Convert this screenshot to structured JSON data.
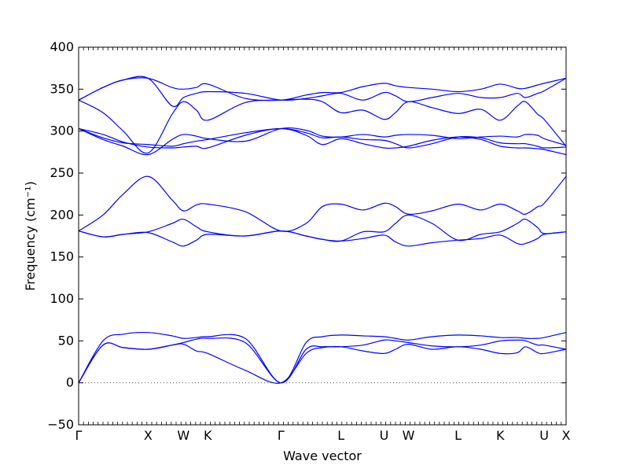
{
  "chart_data": {
    "type": "line",
    "title": "",
    "xlabel": "Wave vector",
    "ylabel": "Frequency (cm⁻¹)",
    "ylim": [
      -50,
      400
    ],
    "yticks": [
      -50,
      0,
      50,
      100,
      150,
      200,
      250,
      300,
      350,
      400
    ],
    "xlim": [
      0,
      12
    ],
    "path_points": [
      {
        "label": "Γ",
        "x": 0
      },
      {
        "label": "X",
        "x": 1.71
      },
      {
        "label": "W",
        "x": 2.58
      },
      {
        "label": "K",
        "x": 3.18
      },
      {
        "label": "Γ",
        "x": 4.98
      },
      {
        "label": "L",
        "x": 6.46
      },
      {
        "label": "U",
        "x": 7.52
      },
      {
        "label": "W",
        "x": 8.12
      },
      {
        "label": "L",
        "x": 9.34
      },
      {
        "label": "K",
        "x": 10.38
      },
      {
        "label": "U",
        "x": 11.46
      },
      {
        "label": "X",
        "x": 12.0
      }
    ],
    "zero_line": 0,
    "line_color": "#0000ff",
    "grid": false,
    "series": [
      {
        "values": [
          [
            0,
            0
          ],
          [
            0.6,
            45
          ],
          [
            1.1,
            42
          ],
          [
            1.71,
            40
          ],
          [
            2.3,
            45
          ],
          [
            2.58,
            46
          ],
          [
            2.9,
            38
          ],
          [
            3.18,
            35
          ],
          [
            4.1,
            15
          ],
          [
            4.98,
            0
          ],
          [
            5.6,
            35
          ],
          [
            6.0,
            42
          ],
          [
            6.46,
            43
          ],
          [
            7.0,
            38
          ],
          [
            7.52,
            35
          ],
          [
            7.8,
            40
          ],
          [
            8.12,
            46
          ],
          [
            8.7,
            40
          ],
          [
            9.34,
            43
          ],
          [
            9.9,
            40
          ],
          [
            10.38,
            35
          ],
          [
            10.8,
            36
          ],
          [
            11.0,
            43
          ],
          [
            11.3,
            36
          ],
          [
            11.46,
            35
          ],
          [
            12.0,
            40
          ]
        ]
      },
      {
        "values": [
          [
            0,
            0
          ],
          [
            0.6,
            45
          ],
          [
            1.1,
            42
          ],
          [
            1.71,
            40
          ],
          [
            2.3,
            45
          ],
          [
            2.58,
            48
          ],
          [
            2.9,
            52
          ],
          [
            3.18,
            53
          ],
          [
            4.1,
            48
          ],
          [
            4.98,
            0
          ],
          [
            5.6,
            40
          ],
          [
            6.0,
            43
          ],
          [
            6.46,
            43
          ],
          [
            7.0,
            45
          ],
          [
            7.52,
            51
          ],
          [
            7.8,
            50
          ],
          [
            8.12,
            48
          ],
          [
            8.7,
            44
          ],
          [
            9.34,
            43
          ],
          [
            9.9,
            45
          ],
          [
            10.38,
            50
          ],
          [
            10.8,
            51
          ],
          [
            11.0,
            50
          ],
          [
            11.3,
            45
          ],
          [
            11.46,
            45
          ],
          [
            12.0,
            40
          ]
        ]
      },
      {
        "values": [
          [
            0,
            0
          ],
          [
            0.6,
            50
          ],
          [
            1.1,
            58
          ],
          [
            1.71,
            60
          ],
          [
            2.3,
            56
          ],
          [
            2.58,
            53
          ],
          [
            2.9,
            54
          ],
          [
            3.18,
            55
          ],
          [
            4.1,
            53
          ],
          [
            4.98,
            0
          ],
          [
            5.6,
            48
          ],
          [
            6.0,
            55
          ],
          [
            6.46,
            57
          ],
          [
            7.0,
            56
          ],
          [
            7.52,
            55
          ],
          [
            7.8,
            53
          ],
          [
            8.12,
            51
          ],
          [
            8.7,
            55
          ],
          [
            9.34,
            57
          ],
          [
            9.9,
            56
          ],
          [
            10.38,
            54
          ],
          [
            10.8,
            54
          ],
          [
            11.0,
            53
          ],
          [
            11.3,
            53
          ],
          [
            11.46,
            54
          ],
          [
            12.0,
            60
          ]
        ]
      },
      {
        "values": [
          [
            0,
            181
          ],
          [
            0.6,
            174
          ],
          [
            1.1,
            177
          ],
          [
            1.71,
            179
          ],
          [
            2.3,
            168
          ],
          [
            2.58,
            163
          ],
          [
            2.9,
            170
          ],
          [
            3.18,
            177
          ],
          [
            4.1,
            175
          ],
          [
            4.98,
            181
          ],
          [
            5.6,
            175
          ],
          [
            6.0,
            171
          ],
          [
            6.46,
            169
          ],
          [
            7.0,
            172
          ],
          [
            7.52,
            176
          ],
          [
            7.8,
            168
          ],
          [
            8.12,
            163
          ],
          [
            8.7,
            167
          ],
          [
            9.34,
            170
          ],
          [
            9.9,
            172
          ],
          [
            10.38,
            176
          ],
          [
            10.8,
            166
          ],
          [
            11.0,
            166
          ],
          [
            11.3,
            172
          ],
          [
            11.46,
            177
          ],
          [
            12.0,
            180
          ]
        ]
      },
      {
        "values": [
          [
            0,
            181
          ],
          [
            0.6,
            174
          ],
          [
            1.1,
            177
          ],
          [
            1.71,
            180
          ],
          [
            2.3,
            190
          ],
          [
            2.58,
            195
          ],
          [
            2.9,
            186
          ],
          [
            3.18,
            180
          ],
          [
            4.1,
            175
          ],
          [
            4.98,
            181
          ],
          [
            5.6,
            175
          ],
          [
            6.0,
            171
          ],
          [
            6.46,
            169
          ],
          [
            7.0,
            180
          ],
          [
            7.52,
            180
          ],
          [
            7.8,
            190
          ],
          [
            8.12,
            200
          ],
          [
            8.7,
            190
          ],
          [
            9.34,
            170
          ],
          [
            9.9,
            177
          ],
          [
            10.38,
            180
          ],
          [
            10.8,
            190
          ],
          [
            11.0,
            195
          ],
          [
            11.3,
            185
          ],
          [
            11.46,
            178
          ],
          [
            12.0,
            180
          ]
        ]
      },
      {
        "values": [
          [
            0,
            181
          ],
          [
            0.6,
            200
          ],
          [
            1.1,
            225
          ],
          [
            1.71,
            246
          ],
          [
            2.3,
            218
          ],
          [
            2.58,
            205
          ],
          [
            2.9,
            212
          ],
          [
            3.18,
            213
          ],
          [
            4.1,
            204
          ],
          [
            4.98,
            181
          ],
          [
            5.6,
            190
          ],
          [
            6.0,
            210
          ],
          [
            6.46,
            213
          ],
          [
            7.0,
            206
          ],
          [
            7.52,
            214
          ],
          [
            7.8,
            210
          ],
          [
            8.12,
            201
          ],
          [
            8.7,
            205
          ],
          [
            9.34,
            213
          ],
          [
            9.9,
            206
          ],
          [
            10.38,
            213
          ],
          [
            10.8,
            205
          ],
          [
            11.0,
            201
          ],
          [
            11.3,
            210
          ],
          [
            11.46,
            214
          ],
          [
            12.0,
            246
          ]
        ]
      },
      {
        "values": [
          [
            0,
            303
          ],
          [
            0.6,
            296
          ],
          [
            1.1,
            287
          ],
          [
            1.71,
            281
          ],
          [
            2.3,
            280
          ],
          [
            2.58,
            281
          ],
          [
            2.9,
            282
          ],
          [
            3.18,
            280
          ],
          [
            4.1,
            295
          ],
          [
            4.98,
            303
          ],
          [
            5.6,
            295
          ],
          [
            6.0,
            284
          ],
          [
            6.46,
            291
          ],
          [
            7.0,
            285
          ],
          [
            7.52,
            280
          ],
          [
            7.8,
            280
          ],
          [
            8.12,
            282
          ],
          [
            8.7,
            289
          ],
          [
            9.34,
            293
          ],
          [
            9.9,
            290
          ],
          [
            10.38,
            282
          ],
          [
            10.8,
            280
          ],
          [
            11.0,
            280
          ],
          [
            11.3,
            279
          ],
          [
            11.46,
            278
          ],
          [
            12.0,
            272
          ]
        ]
      },
      {
        "values": [
          [
            0,
            303
          ],
          [
            0.6,
            292
          ],
          [
            1.1,
            286
          ],
          [
            1.71,
            284
          ],
          [
            2.3,
            282
          ],
          [
            2.58,
            285
          ],
          [
            2.9,
            288
          ],
          [
            3.18,
            290
          ],
          [
            4.1,
            298
          ],
          [
            4.98,
            303
          ],
          [
            5.6,
            298
          ],
          [
            6.0,
            292
          ],
          [
            6.46,
            293
          ],
          [
            7.0,
            290
          ],
          [
            7.52,
            289
          ],
          [
            7.8,
            285
          ],
          [
            8.12,
            280
          ],
          [
            8.7,
            285
          ],
          [
            9.34,
            293
          ],
          [
            9.9,
            292
          ],
          [
            10.38,
            286
          ],
          [
            10.8,
            285
          ],
          [
            11.0,
            285
          ],
          [
            11.3,
            282
          ],
          [
            11.46,
            280
          ],
          [
            12.0,
            281
          ]
        ]
      },
      {
        "values": [
          [
            0,
            303
          ],
          [
            0.6,
            290
          ],
          [
            1.1,
            282
          ],
          [
            1.71,
            272
          ],
          [
            2.3,
            290
          ],
          [
            2.58,
            296
          ],
          [
            2.9,
            294
          ],
          [
            3.18,
            291
          ],
          [
            4.1,
            288
          ],
          [
            4.98,
            303
          ],
          [
            5.6,
            301
          ],
          [
            6.0,
            294
          ],
          [
            6.46,
            293
          ],
          [
            7.0,
            296
          ],
          [
            7.52,
            293
          ],
          [
            7.8,
            295
          ],
          [
            8.12,
            296
          ],
          [
            8.7,
            295
          ],
          [
            9.34,
            291
          ],
          [
            9.9,
            293
          ],
          [
            10.38,
            294
          ],
          [
            10.8,
            293
          ],
          [
            11.0,
            296
          ],
          [
            11.3,
            295
          ],
          [
            11.46,
            291
          ],
          [
            12.0,
            283
          ]
        ]
      },
      {
        "values": [
          [
            0,
            337
          ],
          [
            0.6,
            352
          ],
          [
            1.1,
            361
          ],
          [
            1.71,
            363
          ],
          [
            2.3,
            352
          ],
          [
            2.58,
            350
          ],
          [
            2.9,
            352
          ],
          [
            3.18,
            356
          ],
          [
            4.1,
            339
          ],
          [
            4.98,
            337
          ],
          [
            5.6,
            343
          ],
          [
            6.0,
            346
          ],
          [
            6.46,
            346
          ],
          [
            7.0,
            353
          ],
          [
            7.52,
            357
          ],
          [
            7.8,
            354
          ],
          [
            8.12,
            352
          ],
          [
            8.7,
            350
          ],
          [
            9.34,
            347
          ],
          [
            9.9,
            350
          ],
          [
            10.38,
            356
          ],
          [
            10.8,
            351
          ],
          [
            11.0,
            351
          ],
          [
            11.3,
            355
          ],
          [
            11.46,
            357
          ],
          [
            12.0,
            363
          ]
        ]
      },
      {
        "values": [
          [
            0,
            337
          ],
          [
            0.6,
            352
          ],
          [
            1.1,
            361
          ],
          [
            1.71,
            363
          ],
          [
            2.3,
            330
          ],
          [
            2.58,
            340
          ],
          [
            2.9,
            345
          ],
          [
            3.18,
            347
          ],
          [
            4.1,
            345
          ],
          [
            4.98,
            337
          ],
          [
            5.6,
            339
          ],
          [
            6.0,
            342
          ],
          [
            6.46,
            345
          ],
          [
            7.0,
            337
          ],
          [
            7.52,
            346
          ],
          [
            7.8,
            342
          ],
          [
            8.12,
            335
          ],
          [
            8.7,
            340
          ],
          [
            9.34,
            345
          ],
          [
            9.9,
            340
          ],
          [
            10.38,
            340
          ],
          [
            10.8,
            345
          ],
          [
            11.0,
            340
          ],
          [
            11.3,
            345
          ],
          [
            11.46,
            348
          ],
          [
            12.0,
            363
          ]
        ]
      },
      {
        "values": [
          [
            0,
            337
          ],
          [
            0.6,
            322
          ],
          [
            1.1,
            300
          ],
          [
            1.71,
            274
          ],
          [
            2.3,
            320
          ],
          [
            2.58,
            335
          ],
          [
            2.9,
            325
          ],
          [
            3.18,
            313
          ],
          [
            4.1,
            334
          ],
          [
            4.98,
            337
          ],
          [
            5.6,
            338
          ],
          [
            6.0,
            335
          ],
          [
            6.46,
            322
          ],
          [
            7.0,
            325
          ],
          [
            7.52,
            314
          ],
          [
            7.8,
            322
          ],
          [
            8.12,
            335
          ],
          [
            8.7,
            328
          ],
          [
            9.34,
            321
          ],
          [
            9.9,
            326
          ],
          [
            10.38,
            313
          ],
          [
            10.8,
            330
          ],
          [
            11.0,
            335
          ],
          [
            11.3,
            320
          ],
          [
            11.46,
            314
          ],
          [
            12.0,
            282
          ]
        ]
      }
    ]
  }
}
